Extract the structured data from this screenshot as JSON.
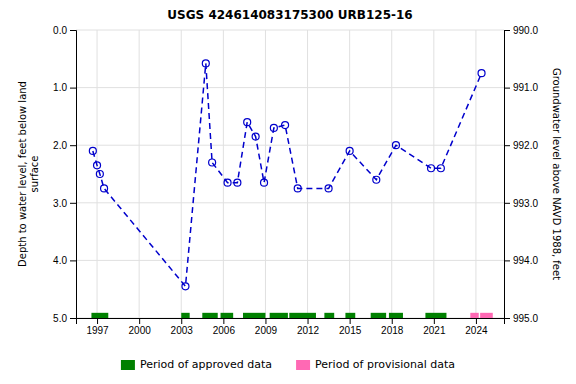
{
  "chart_data": {
    "type": "line",
    "title": "USGS 424614083175300 URB125-16",
    "ylabel": "Depth to water level, feet below land\nsurface",
    "y2label": "Groundwater level above NAVD 1988, feet",
    "xlim": [
      1995.5,
      2026.0
    ],
    "xticks": [
      1997,
      2000,
      2003,
      2006,
      2009,
      2012,
      2015,
      2018,
      2021,
      2024
    ],
    "ylim": [
      5.0,
      0.0
    ],
    "yticks": [
      {
        "value": 0.0,
        "label": "0.0"
      },
      {
        "value": 1.0,
        "label": "1.0"
      },
      {
        "value": 2.0,
        "label": "2.0"
      },
      {
        "value": 3.0,
        "label": "3.0"
      },
      {
        "value": 4.0,
        "label": "4.0"
      },
      {
        "value": 5.0,
        "label": "5.0"
      }
    ],
    "y2lim": [
      995.0,
      990.0
    ],
    "y2ticks": [
      {
        "value": 995.0,
        "label": "995.0"
      },
      {
        "value": 994.0,
        "label": "994.0"
      },
      {
        "value": 993.0,
        "label": "993.0"
      },
      {
        "value": 992.0,
        "label": "992.0"
      },
      {
        "value": 991.0,
        "label": "991.0"
      },
      {
        "value": 990.0,
        "label": "990.0"
      }
    ],
    "grid": true,
    "legend": "bottom",
    "x": [
      1996.7,
      1997.0,
      1997.2,
      1997.5,
      2003.3,
      2004.75,
      2005.2,
      2006.3,
      2007.0,
      2007.7,
      2008.3,
      2008.9,
      2009.6,
      2010.4,
      2011.3,
      2013.5,
      2015.0,
      2016.9,
      2018.3,
      2020.8,
      2021.5,
      2024.4
    ],
    "series": [
      {
        "type": "line",
        "color": "#0000cc",
        "marker": "circle",
        "line_style": "dashed",
        "values": [
          2.1,
          2.35,
          2.5,
          2.75,
          4.45,
          0.58,
          2.3,
          2.65,
          2.65,
          1.6,
          1.85,
          2.65,
          1.7,
          1.65,
          2.75,
          2.75,
          2.1,
          2.6,
          2.0,
          2.4,
          2.4,
          0.75
        ]
      },
      {
        "type": "span",
        "name": "Period of approved data",
        "color": "#008000",
        "y": 4.97,
        "height": 0.12,
        "segments": [
          [
            1996.6,
            1997.8
          ],
          [
            2003.0,
            2003.6
          ],
          [
            2004.5,
            2005.6
          ],
          [
            2005.8,
            2006.7
          ],
          [
            2007.4,
            2009.0
          ],
          [
            2009.3,
            2010.6
          ],
          [
            2010.7,
            2012.6
          ],
          [
            2013.2,
            2013.9
          ],
          [
            2014.7,
            2015.4
          ],
          [
            2016.5,
            2017.6
          ],
          [
            2017.8,
            2018.8
          ],
          [
            2020.4,
            2021.9
          ]
        ]
      },
      {
        "type": "span",
        "name": "Period of provisional data",
        "color": "#ff69b4",
        "y": 4.97,
        "height": 0.12,
        "segments": [
          [
            2023.6,
            2024.2
          ],
          [
            2024.3,
            2025.2
          ]
        ]
      }
    ]
  }
}
